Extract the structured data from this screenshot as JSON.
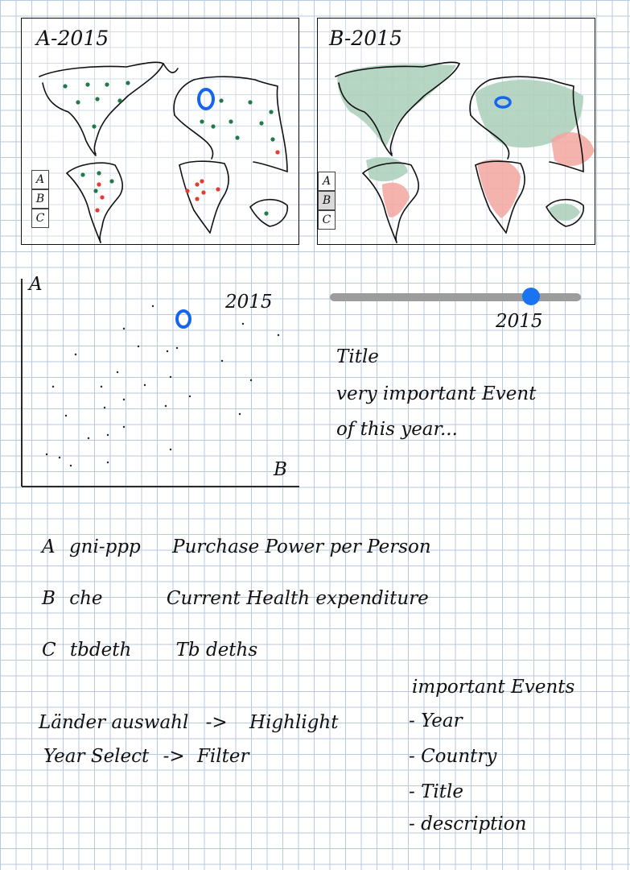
{
  "map_a": {
    "title": "A-2015",
    "legend": [
      "A",
      "B",
      "C"
    ]
  },
  "map_b": {
    "title": "B-2015",
    "legend": [
      "A",
      "B",
      "C"
    ]
  },
  "scatter": {
    "y_label": "A",
    "x_label": "B",
    "year_label": "2015"
  },
  "slider": {
    "value_label": "2015",
    "position": 0.8,
    "accent": "#1a73f0"
  },
  "event": {
    "title": "Title",
    "line1": "very important Event",
    "line2": "of this year..."
  },
  "definitions": [
    {
      "key": "A",
      "code": "gni-ppp",
      "desc": "Purchase Power per Person"
    },
    {
      "key": "B",
      "code": "che",
      "desc": "Current Health expenditure"
    },
    {
      "key": "C",
      "code": "tbdeth",
      "desc": "Tb deths"
    }
  ],
  "interactions": [
    {
      "source": "Länder auswahl",
      "arrow": "->",
      "target": "Highlight"
    },
    {
      "source": "Year Select",
      "arrow": "->",
      "target": "Filter"
    }
  ],
  "important_events": {
    "heading": "important Events",
    "items": [
      "- Year",
      "- Country",
      "- Title",
      "- description"
    ]
  },
  "colors": {
    "green": "#1f7a48",
    "red": "#e63b2e",
    "blue": "#1565f0",
    "green_fill": "#a9cfb8",
    "red_fill": "#f3a6a0"
  }
}
